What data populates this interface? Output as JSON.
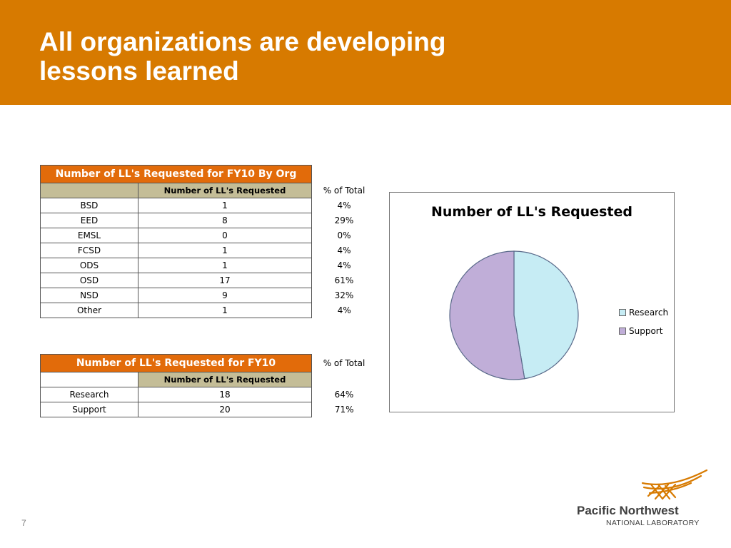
{
  "slide": {
    "title_line1": "All organizations are developing",
    "title_line2": "lessons learned",
    "page_number": "7",
    "header_color": "#d77a00"
  },
  "table_by_org": {
    "title": "Number of LL's Requested for FY10 By Org",
    "col_requested": "Number of LL's Requested",
    "col_percent": "% of Total",
    "rows": [
      {
        "org": "BSD",
        "requested": "1",
        "percent": "4%"
      },
      {
        "org": "EED",
        "requested": "8",
        "percent": "29%"
      },
      {
        "org": "EMSL",
        "requested": "0",
        "percent": "0%"
      },
      {
        "org": "FCSD",
        "requested": "1",
        "percent": "4%"
      },
      {
        "org": "ODS",
        "requested": "1",
        "percent": "4%"
      },
      {
        "org": "OSD",
        "requested": "17",
        "percent": "61%"
      },
      {
        "org": "NSD",
        "requested": "9",
        "percent": "32%"
      },
      {
        "org": "Other",
        "requested": "1",
        "percent": "4%"
      }
    ]
  },
  "table_fy10": {
    "title": "Number of LL's Requested for FY10",
    "col_requested": "Number of LL's Requested",
    "col_percent": "% of Total",
    "rows": [
      {
        "org": "Research",
        "requested": "18",
        "percent": "64%"
      },
      {
        "org": "Support",
        "requested": "20",
        "percent": "71%"
      }
    ]
  },
  "chart_data": {
    "type": "pie",
    "title": "Number of LL's Requested",
    "categories": [
      "Research",
      "Support"
    ],
    "values": [
      18,
      20
    ],
    "colors": [
      "#c6ecf4",
      "#c0aed8"
    ],
    "legend_placement": "right"
  },
  "logo": {
    "line1": "Pacific Northwest",
    "line2": "NATIONAL LABORATORY",
    "accent_color": "#d77a00"
  }
}
